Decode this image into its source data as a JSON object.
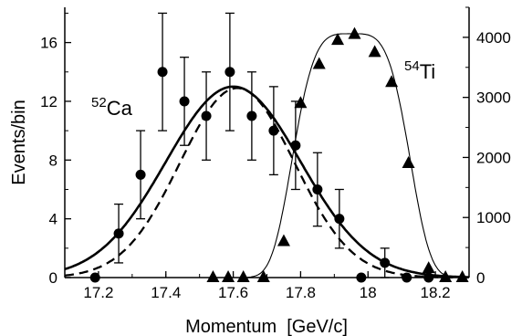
{
  "chart_data": {
    "type": "scatter",
    "xlabel": "Momentum  [GeV/c]",
    "ylabel_left": "Events/bin",
    "ylabel_right": "",
    "xlim": [
      17.1,
      18.3
    ],
    "ylim_left": [
      0,
      18.4
    ],
    "ylim_right": [
      0,
      4500
    ],
    "x_ticks": [
      "17.2",
      "17.4",
      "17.6",
      "17.8",
      "18",
      "18.2"
    ],
    "x_tick_values": [
      17.2,
      17.4,
      17.6,
      17.8,
      18.0,
      18.2
    ],
    "y_left_ticks": [
      "0",
      "4",
      "8",
      "12",
      "16"
    ],
    "y_left_tick_values": [
      0,
      4,
      8,
      12,
      16
    ],
    "y_right_ticks": [
      "0",
      "1000",
      "2000",
      "3000",
      "4000"
    ],
    "y_right_tick_values": [
      0,
      1000,
      2000,
      3000,
      4000
    ],
    "annotations": {
      "ca": {
        "mass": "52",
        "element": "Ca"
      },
      "ti": {
        "mass": "54",
        "element": "Ti"
      }
    },
    "series": [
      {
        "marker": "circle",
        "axis": "left",
        "x": [
          17.19,
          17.26,
          17.325,
          17.39,
          17.455,
          17.52,
          17.59,
          17.655,
          17.72,
          17.785,
          17.85,
          17.915,
          17.98,
          18.05,
          18.115,
          18.18
        ],
        "y": [
          0,
          3,
          7,
          14,
          12,
          11,
          14,
          11,
          10,
          9,
          6,
          4,
          0,
          1,
          0,
          0
        ],
        "err": [
          0,
          2,
          3,
          4,
          3,
          3,
          4,
          3,
          3,
          3,
          2.5,
          2,
          0,
          1,
          0,
          0
        ]
      },
      {
        "marker": "triangle",
        "axis": "right",
        "x": [
          17.54,
          17.585,
          17.63,
          17.69,
          17.75,
          17.8,
          17.855,
          17.91,
          17.96,
          18.02,
          18.07,
          18.12,
          18.18,
          18.23,
          18.28
        ],
        "y": [
          0,
          0,
          0,
          0,
          600,
          2900,
          3550,
          3950,
          4050,
          3750,
          3250,
          1900,
          150,
          0,
          0
        ]
      }
    ],
    "curves": [
      {
        "style": "solid-thick",
        "axis": "left",
        "amp": 13,
        "mu": 17.6,
        "sigma": 0.2
      },
      {
        "style": "dashed-thick",
        "axis": "left",
        "amp": 12.9,
        "mu": 17.612,
        "sigma": 0.17
      },
      {
        "style": "solid-thin",
        "axis": "right",
        "amp": 4060,
        "mu": 17.95,
        "power": 4,
        "width": 0.19
      }
    ]
  }
}
